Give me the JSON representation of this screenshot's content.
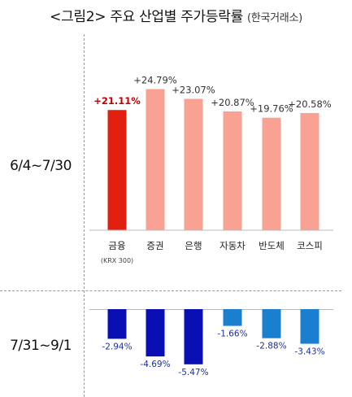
{
  "title": {
    "main": "<그림2> 주요 산업별 주가등락률",
    "source": "(한국거래소)"
  },
  "chart_data": [
    {
      "type": "bar",
      "period": "6/4~7/30",
      "categories": [
        "금융",
        "증권",
        "은행",
        "자동차",
        "반도체",
        "코스피"
      ],
      "category_sublabels": [
        "(KRX 300)",
        "",
        "",
        "",
        "",
        ""
      ],
      "values": [
        21.11,
        24.79,
        23.07,
        20.87,
        19.76,
        20.58
      ],
      "value_labels": [
        "+21.11%",
        "+24.79%",
        "+23.07%",
        "+20.87%",
        "+19.76%",
        "+20.58%"
      ],
      "colors": [
        "#e3200f",
        "#f9a294",
        "#f9a294",
        "#f9a294",
        "#f9a294",
        "#f9a294"
      ],
      "label_colors": [
        "#c00000",
        "#333333",
        "#333333",
        "#333333",
        "#333333",
        "#333333"
      ]
    },
    {
      "type": "bar",
      "period": "7/31~9/1",
      "categories": [
        "금융",
        "증권",
        "은행",
        "자동차",
        "반도체",
        "코스피"
      ],
      "values": [
        -2.94,
        -4.69,
        -5.47,
        -1.66,
        -2.88,
        -3.43
      ],
      "value_labels": [
        "-2.94%",
        "-4.69%",
        "-5.47%",
        "-1.66%",
        "-2.88%",
        "-3.43%"
      ],
      "colors": [
        "#0a0fb4",
        "#0a0fb4",
        "#0a0fb4",
        "#1b7fd0",
        "#1b7fd0",
        "#1b7fd0"
      ],
      "label_colors": [
        "#1f2f9a",
        "#1f2f9a",
        "#1f2f9a",
        "#1f2f9a",
        "#1f2f9a",
        "#1f2f9a"
      ]
    }
  ]
}
